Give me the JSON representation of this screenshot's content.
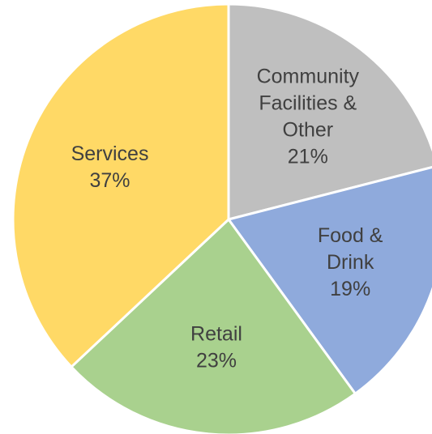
{
  "chart_data": {
    "type": "pie",
    "title": "",
    "start": "top",
    "direction": "clockwise",
    "legend": "none",
    "slice_border_color": "#ffffff",
    "label_color": "#404040",
    "slices": [
      {
        "label_lines": [
          "Community",
          "Facilities &",
          "Other"
        ],
        "percent_label": "21%",
        "value": 21,
        "color": "#BFBFBF"
      },
      {
        "label_lines": [
          "Food &",
          "Drink"
        ],
        "percent_label": "19%",
        "value": 19,
        "color": "#8FAADC"
      },
      {
        "label_lines": [
          "Retail"
        ],
        "percent_label": "23%",
        "value": 23,
        "color": "#A9D18E"
      },
      {
        "label_lines": [
          "Services"
        ],
        "percent_label": "37%",
        "value": 37,
        "color": "#FFD966"
      }
    ]
  }
}
